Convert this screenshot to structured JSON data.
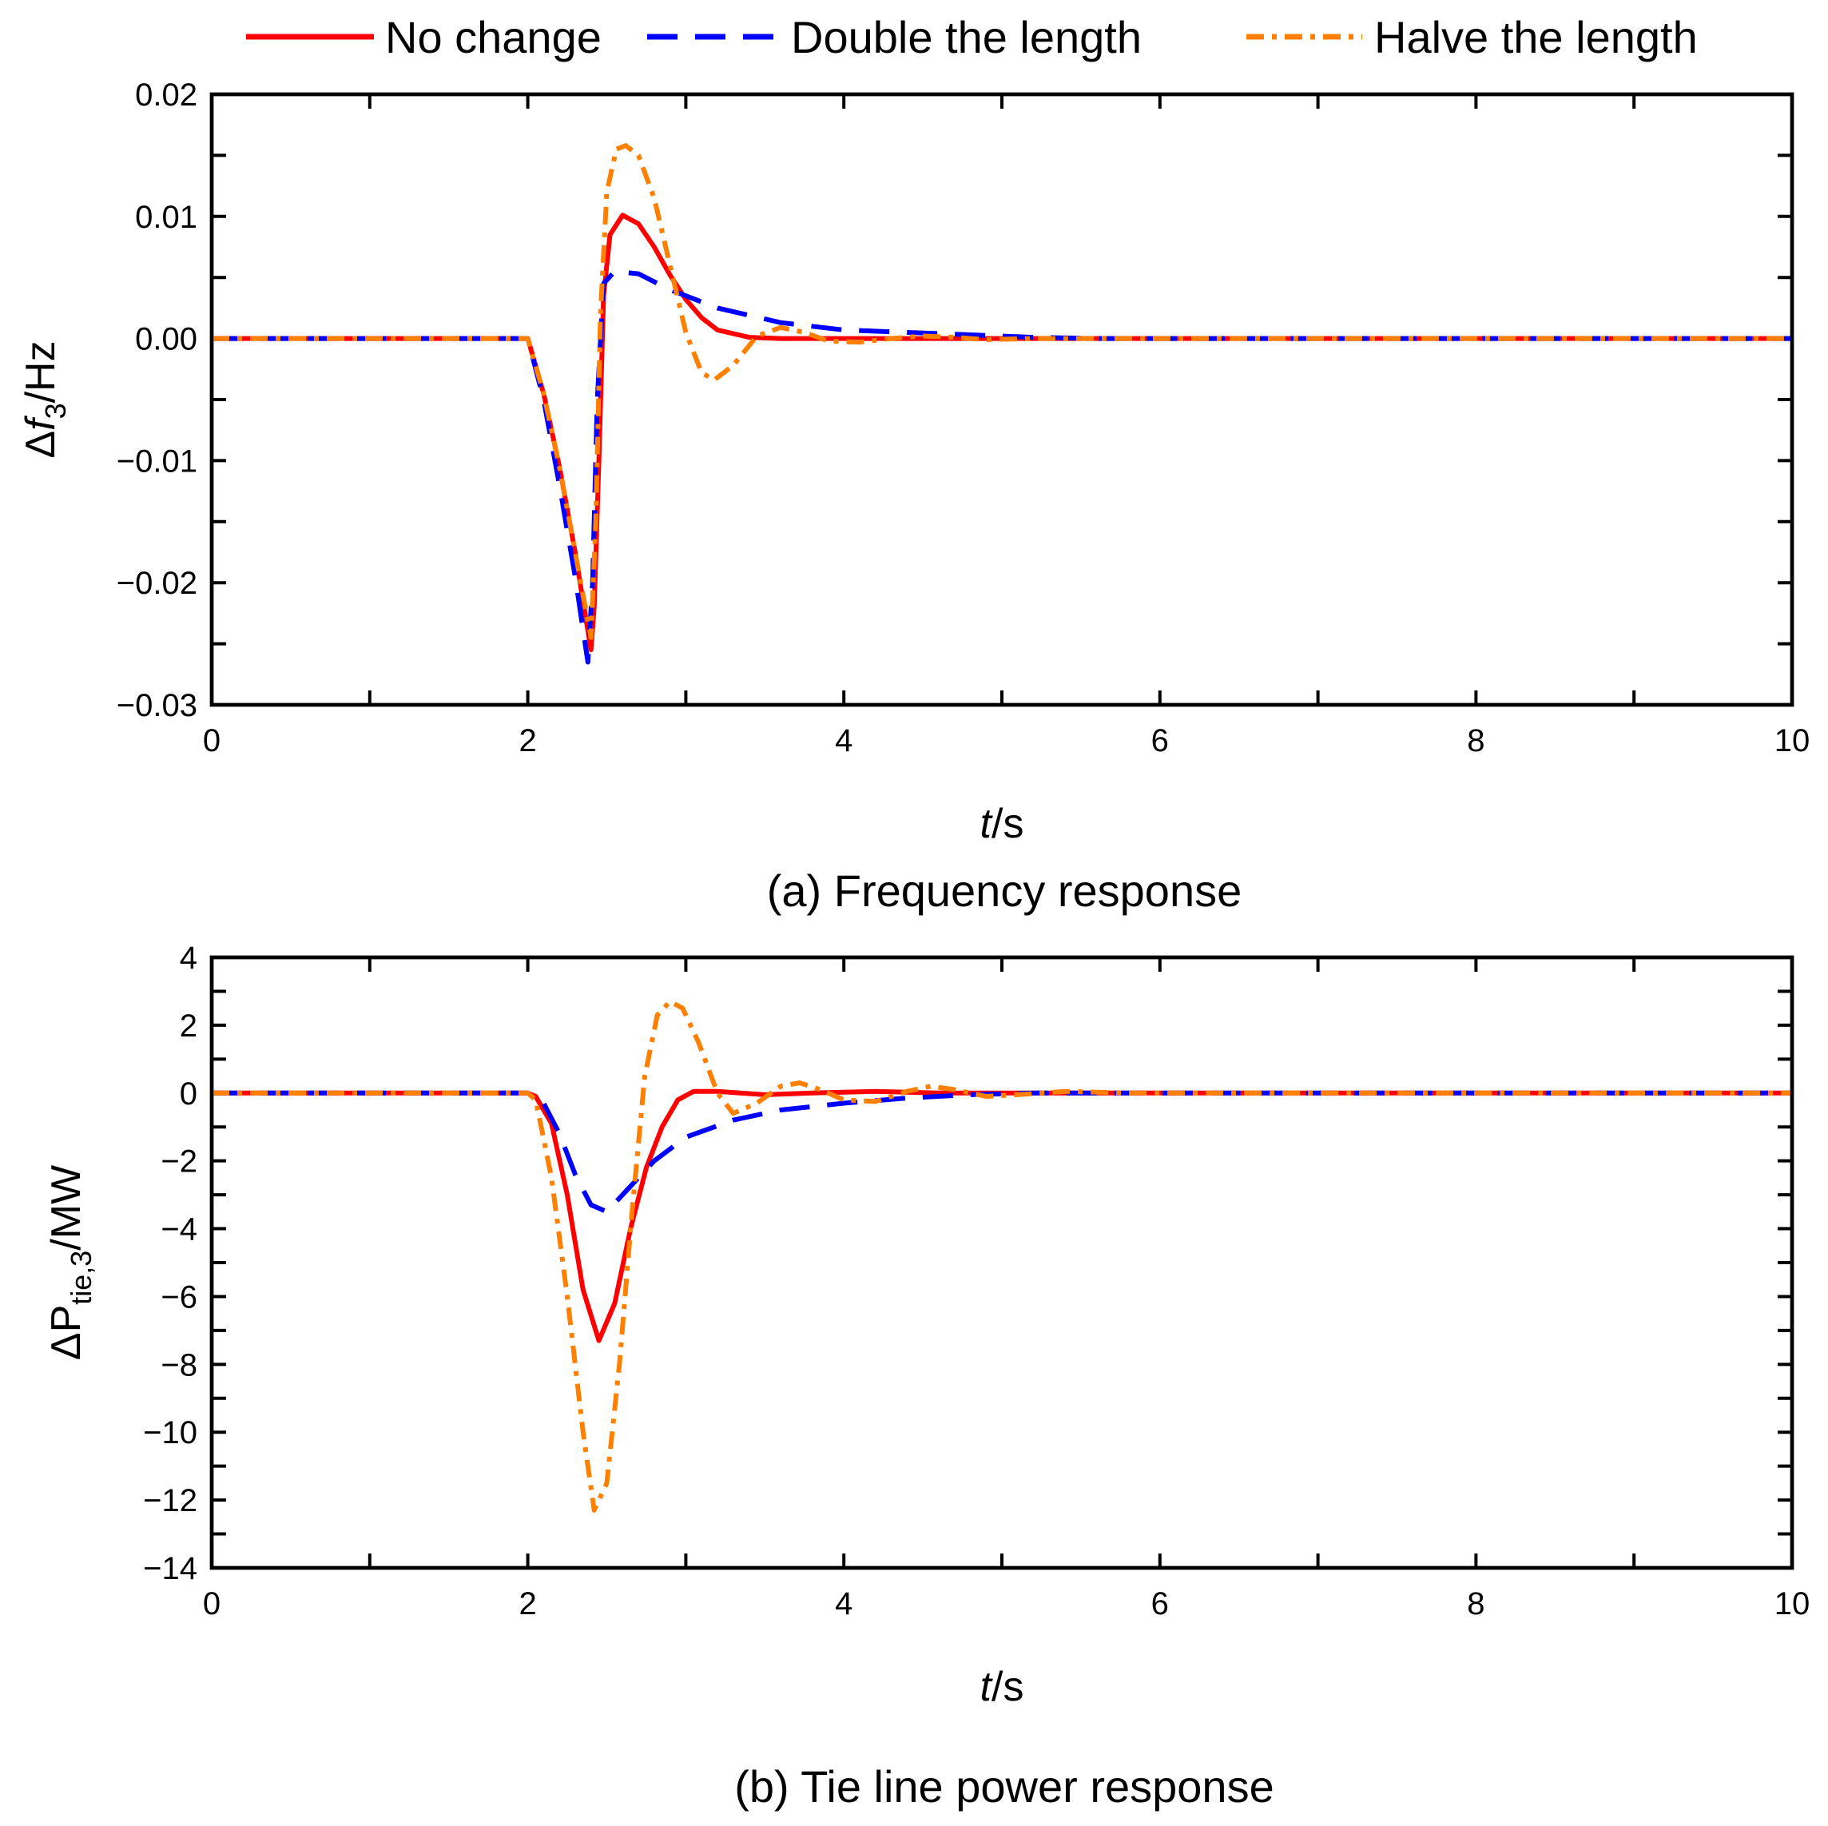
{
  "legend": [
    {
      "series": "no_change",
      "label": "No change"
    },
    {
      "series": "double",
      "label": "Double the length"
    },
    {
      "series": "halve",
      "label": "Halve the length"
    }
  ],
  "colors": {
    "no_change": "#ff0000",
    "double": "#0000ff",
    "halve": "#ff8000"
  },
  "chart_data": [
    {
      "id": "freq",
      "type": "line",
      "caption": "(a) Frequency response",
      "xlabel": {
        "italic": "t",
        "rest": "/s"
      },
      "ylabel": {
        "prefix": "Δ",
        "italic": "f",
        "sub": "3",
        "suffix": "/Hz"
      },
      "xlim": [
        0,
        10
      ],
      "ylim": [
        -0.03,
        0.02
      ],
      "xticks": [
        0,
        2,
        4,
        6,
        8,
        10
      ],
      "xtick_labels": [
        "0",
        "2",
        "4",
        "6",
        "8",
        "10"
      ],
      "xminor": [
        1,
        3,
        5,
        7,
        9
      ],
      "yticks": [
        -0.03,
        -0.02,
        -0.01,
        0.0,
        0.01,
        0.02
      ],
      "ytick_labels": [
        "−0.03",
        "−0.02",
        "−0.01",
        "0.00",
        "0.01",
        "0.02"
      ],
      "yminor": [
        -0.025,
        -0.015,
        -0.005,
        0.005,
        0.015
      ],
      "grid": false,
      "legend_position": "top",
      "series": [
        {
          "key": "no_change",
          "name": "No change",
          "points": [
            [
              0,
              0
            ],
            [
              2,
              0
            ],
            [
              2.1,
              -0.0045
            ],
            [
              2.2,
              -0.0105
            ],
            [
              2.3,
              -0.0175
            ],
            [
              2.4,
              -0.0255
            ],
            [
              2.42,
              -0.022
            ],
            [
              2.45,
              -0.01
            ],
            [
              2.48,
              0.0035
            ],
            [
              2.52,
              0.0085
            ],
            [
              2.6,
              0.0101
            ],
            [
              2.7,
              0.0094
            ],
            [
              2.8,
              0.0075
            ],
            [
              2.9,
              0.0052
            ],
            [
              3.0,
              0.0032
            ],
            [
              3.1,
              0.0017
            ],
            [
              3.2,
              0.0007
            ],
            [
              3.4,
              0.0001
            ],
            [
              3.6,
              0
            ],
            [
              4,
              0
            ],
            [
              10,
              0
            ]
          ]
        },
        {
          "key": "double",
          "name": "Double the length",
          "points": [
            [
              0,
              0
            ],
            [
              2,
              0
            ],
            [
              2.1,
              -0.005
            ],
            [
              2.2,
              -0.012
            ],
            [
              2.3,
              -0.0195
            ],
            [
              2.38,
              -0.0265
            ],
            [
              2.41,
              -0.02
            ],
            [
              2.44,
              -0.005
            ],
            [
              2.48,
              0.0045
            ],
            [
              2.55,
              0.0055
            ],
            [
              2.7,
              0.0053
            ],
            [
              2.9,
              0.004
            ],
            [
              3.2,
              0.0025
            ],
            [
              3.6,
              0.0013
            ],
            [
              4.0,
              0.0007
            ],
            [
              4.4,
              0.0005
            ],
            [
              4.8,
              0.0003
            ],
            [
              5.2,
              0.0001
            ],
            [
              5.6,
              0
            ],
            [
              6.0,
              0
            ],
            [
              10,
              0
            ]
          ]
        },
        {
          "key": "halve",
          "name": "Halve the length",
          "points": [
            [
              0,
              0
            ],
            [
              2,
              0
            ],
            [
              2.1,
              -0.0045
            ],
            [
              2.2,
              -0.0105
            ],
            [
              2.3,
              -0.0175
            ],
            [
              2.4,
              -0.0245
            ],
            [
              2.43,
              -0.015
            ],
            [
              2.46,
              0.002
            ],
            [
              2.5,
              0.012
            ],
            [
              2.56,
              0.0155
            ],
            [
              2.62,
              0.0158
            ],
            [
              2.7,
              0.015
            ],
            [
              2.8,
              0.0115
            ],
            [
              2.9,
              0.006
            ],
            [
              3.0,
              0.0005
            ],
            [
              3.1,
              -0.0028
            ],
            [
              3.18,
              -0.0034
            ],
            [
              3.3,
              -0.0022
            ],
            [
              3.45,
              0.0002
            ],
            [
              3.6,
              0.0009
            ],
            [
              3.75,
              0.0005
            ],
            [
              3.9,
              -0.0002
            ],
            [
              4.1,
              -0.0003
            ],
            [
              4.3,
              0
            ],
            [
              4.5,
              0.0002
            ],
            [
              4.7,
              0.0001
            ],
            [
              4.9,
              -0.0001
            ],
            [
              5.2,
              0
            ],
            [
              10,
              0
            ]
          ]
        }
      ]
    },
    {
      "id": "tie",
      "type": "line",
      "caption": "(b) Tie line power response",
      "xlabel": {
        "italic": "t",
        "rest": "/s"
      },
      "ylabel": {
        "prefix": "ΔP",
        "italic": "",
        "sub": "tie,3",
        "suffix": "/MW"
      },
      "xlim": [
        0,
        10
      ],
      "ylim": [
        -14,
        4
      ],
      "xticks": [
        0,
        2,
        4,
        6,
        8,
        10
      ],
      "xtick_labels": [
        "0",
        "2",
        "4",
        "6",
        "8",
        "10"
      ],
      "xminor": [
        1,
        3,
        5,
        7,
        9
      ],
      "yticks": [
        -14,
        -12,
        -10,
        -8,
        -6,
        -4,
        -2,
        0,
        2,
        4
      ],
      "ytick_labels": [
        "−14",
        "−12",
        "−10",
        "−8",
        "−6",
        "−4",
        "−2",
        "0",
        "2",
        "4"
      ],
      "yminor": [
        -13,
        -11,
        -9,
        -7,
        -5,
        -3,
        -1,
        1,
        3
      ],
      "grid": false,
      "legend_position": "top",
      "series": [
        {
          "key": "no_change",
          "name": "No change",
          "points": [
            [
              0,
              0
            ],
            [
              2,
              0
            ],
            [
              2.05,
              -0.1
            ],
            [
              2.15,
              -0.9
            ],
            [
              2.25,
              -3.0
            ],
            [
              2.35,
              -5.8
            ],
            [
              2.45,
              -7.3
            ],
            [
              2.55,
              -6.2
            ],
            [
              2.65,
              -4.0
            ],
            [
              2.75,
              -2.2
            ],
            [
              2.85,
              -1.0
            ],
            [
              2.95,
              -0.2
            ],
            [
              3.05,
              0.05
            ],
            [
              3.2,
              0.05
            ],
            [
              3.5,
              -0.05
            ],
            [
              3.8,
              0
            ],
            [
              4.2,
              0.05
            ],
            [
              4.6,
              0
            ],
            [
              10,
              0
            ]
          ]
        },
        {
          "key": "double",
          "name": "Double the length",
          "points": [
            [
              0,
              0
            ],
            [
              2,
              0
            ],
            [
              2.1,
              -0.3
            ],
            [
              2.2,
              -1.2
            ],
            [
              2.3,
              -2.4
            ],
            [
              2.4,
              -3.3
            ],
            [
              2.5,
              -3.5
            ],
            [
              2.6,
              -3.0
            ],
            [
              2.8,
              -2.0
            ],
            [
              3.0,
              -1.3
            ],
            [
              3.3,
              -0.8
            ],
            [
              3.6,
              -0.5
            ],
            [
              4.0,
              -0.3
            ],
            [
              4.4,
              -0.15
            ],
            [
              4.8,
              -0.05
            ],
            [
              5.2,
              0
            ],
            [
              10,
              0
            ]
          ]
        },
        {
          "key": "halve",
          "name": "Halve the length",
          "points": [
            [
              0,
              0
            ],
            [
              2,
              0
            ],
            [
              2.05,
              -0.2
            ],
            [
              2.15,
              -2.5
            ],
            [
              2.25,
              -6.0
            ],
            [
              2.35,
              -10.0
            ],
            [
              2.42,
              -12.3
            ],
            [
              2.5,
              -11.5
            ],
            [
              2.58,
              -8.0
            ],
            [
              2.66,
              -3.5
            ],
            [
              2.74,
              0.5
            ],
            [
              2.82,
              2.3
            ],
            [
              2.9,
              2.7
            ],
            [
              2.98,
              2.5
            ],
            [
              3.08,
              1.5
            ],
            [
              3.2,
              0.0
            ],
            [
              3.3,
              -0.6
            ],
            [
              3.45,
              -0.3
            ],
            [
              3.6,
              0.2
            ],
            [
              3.72,
              0.3
            ],
            [
              3.85,
              0.1
            ],
            [
              4.0,
              -0.2
            ],
            [
              4.2,
              -0.25
            ],
            [
              4.4,
              0.05
            ],
            [
              4.55,
              0.2
            ],
            [
              4.7,
              0.1
            ],
            [
              4.9,
              -0.1
            ],
            [
              5.1,
              -0.05
            ],
            [
              5.4,
              0.05
            ],
            [
              5.8,
              0
            ],
            [
              10,
              0
            ]
          ]
        }
      ]
    }
  ]
}
